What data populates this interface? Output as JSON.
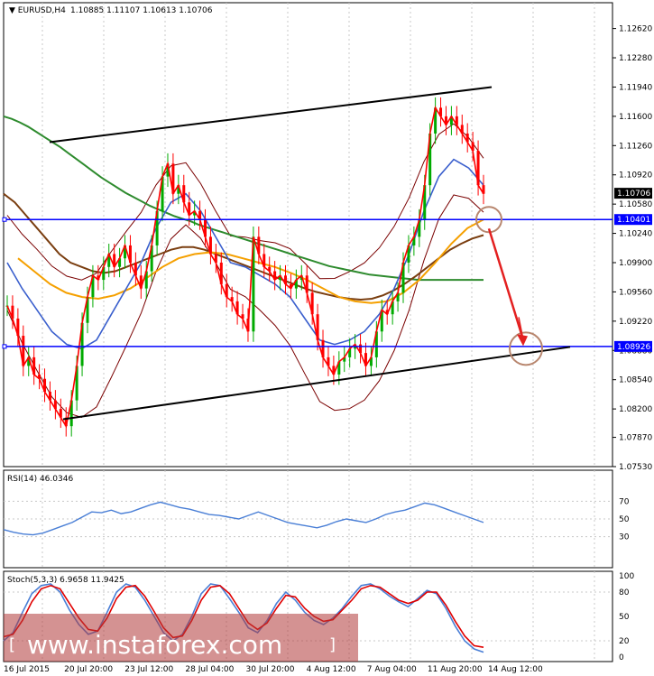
{
  "chart_data": [
    {
      "type": "line",
      "symbol": "EURUSD,H4",
      "ohlc": [
        "1.10885",
        "1.11107",
        "1.10613",
        "1.10706"
      ],
      "ylim": [
        1.0753,
        1.1292
      ],
      "y_ticks": [
        "1.12620",
        "1.12280",
        "1.11940",
        "1.11600",
        "1.11260",
        "1.10920",
        "1.10580",
        "1.10240",
        "1.09900",
        "1.09560",
        "1.09220",
        "1.08880",
        "1.08540",
        "1.08200",
        "1.07870",
        "1.07530"
      ],
      "price_levels": [
        {
          "label": "1.10706",
          "value": 1.10706,
          "color": "#000000"
        },
        {
          "label": "1.10401",
          "value": 1.10401,
          "color": "#0000ff"
        },
        {
          "label": "1.08926",
          "value": 1.08926,
          "color": "#0000ff"
        }
      ],
      "x_labels": [
        "16 Jul 2015",
        "20 Jul 20:00",
        "23 Jul 12:00",
        "28 Jul 04:00",
        "30 Jul 20:00",
        "4 Aug 12:00",
        "7 Aug 04:00",
        "11 Aug 20:00",
        "14 Aug 12:00"
      ],
      "close": [
        1.094,
        1.0925,
        1.0905,
        1.087,
        1.088,
        1.086,
        1.0855,
        1.084,
        1.083,
        1.082,
        1.081,
        1.08,
        1.083,
        1.087,
        1.092,
        1.095,
        1.0975,
        1.097,
        1.0985,
        1.1,
        1.0985,
        1.0995,
        1.101,
        1.099,
        1.0975,
        1.096,
        1.098,
        1.101,
        1.105,
        1.109,
        1.1105,
        1.107,
        1.108,
        1.106,
        1.1045,
        1.105,
        1.104,
        1.102,
        1.1,
        1.099,
        1.0965,
        1.095,
        1.0945,
        1.093,
        1.0925,
        1.091,
        1.102,
        1.1,
        1.0985,
        1.098,
        1.097,
        1.0975,
        1.0965,
        1.096,
        1.097,
        1.0975,
        1.0955,
        1.093,
        1.09,
        1.088,
        1.087,
        1.086,
        1.0875,
        1.088,
        1.089,
        1.0895,
        1.0885,
        1.087,
        1.088,
        1.091,
        1.0935,
        1.093,
        1.0945,
        1.0955,
        1.099,
        1.101,
        1.102,
        1.104,
        1.108,
        1.114,
        1.117,
        1.116,
        1.115,
        1.116,
        1.115,
        1.114,
        1.113,
        1.112,
        1.108,
        1.107
      ],
      "ma_green": [
        1.116,
        1.1157,
        1.1153,
        1.1148,
        1.1142,
        1.1136,
        1.113,
        1.1124,
        1.1117,
        1.111,
        1.1103,
        1.1096,
        1.1089,
        1.1083,
        1.1077,
        1.1071,
        1.1066,
        1.1061,
        1.1056,
        1.1052,
        1.1048,
        1.1044,
        1.1041,
        1.1038,
        1.1034,
        1.1031,
        1.1028,
        1.1025,
        1.1022,
        1.1019,
        1.1016,
        1.1013,
        1.101,
        1.1007,
        1.1004,
        1.1001,
        1.0998,
        1.0995,
        1.0992,
        1.0989,
        1.0986,
        1.0984,
        1.0982,
        1.098,
        1.0978,
        1.0976,
        1.0975,
        1.0974,
        1.0973,
        1.0972,
        1.0971,
        1.097,
        1.097,
        1.097,
        1.097,
        1.097,
        1.097,
        1.097,
        1.097,
        1.097
      ],
      "ma_brown": [
        1.107,
        1.106,
        1.1045,
        1.103,
        1.1015,
        1.1,
        1.099,
        1.0985,
        1.098,
        1.0978,
        1.098,
        1.0985,
        1.099,
        1.0995,
        1.1,
        1.1005,
        1.1008,
        1.1008,
        1.1005,
        1.1,
        1.0995,
        1.099,
        1.0985,
        1.098,
        1.0975,
        1.097,
        1.0965,
        1.096,
        1.0956,
        1.0953,
        1.095,
        1.0948,
        1.0947,
        1.0948,
        1.0952,
        1.0958,
        1.0966,
        1.0975,
        1.0985,
        1.0995,
        1.1005,
        1.1012,
        1.1018,
        1.1022
      ],
      "ma_orange": [
        1.0995,
        1.098,
        1.0965,
        1.0955,
        1.095,
        1.0948,
        1.0952,
        1.096,
        1.0972,
        1.0985,
        1.0995,
        1.1,
        1.1002,
        1.1,
        1.0995,
        1.099,
        1.0985,
        1.0978,
        1.097,
        1.096,
        1.095,
        1.0945,
        1.0943,
        1.0945,
        1.0955,
        1.097,
        1.099,
        1.1012,
        1.103,
        1.104
      ],
      "ma_blue": [
        1.099,
        1.096,
        1.0935,
        1.091,
        1.0895,
        1.089,
        1.09,
        1.093,
        1.096,
        1.099,
        1.103,
        1.106,
        1.107,
        1.105,
        1.102,
        1.099,
        1.0985,
        1.0975,
        1.0965,
        1.095,
        1.0925,
        1.09,
        1.0895,
        1.09,
        1.091,
        1.093,
        1.096,
        1.1,
        1.105,
        1.109,
        1.111,
        1.11,
        1.108
      ],
      "channel_upper": [
        [
          1.113,
          1.1194
        ]
      ],
      "channel_lower": [
        [
          1.0808,
          1.0892
        ]
      ]
    },
    {
      "type": "line",
      "label": "RSI(14) 46.0346",
      "ylim": [
        0,
        100
      ],
      "y_ticks": [
        "70",
        "50",
        "30"
      ],
      "values": [
        38,
        35,
        33,
        32,
        34,
        38,
        42,
        46,
        52,
        58,
        57,
        60,
        56,
        58,
        62,
        66,
        69,
        66,
        63,
        61,
        58,
        55,
        54,
        52,
        50,
        54,
        58,
        54,
        50,
        46,
        44,
        42,
        40,
        43,
        47,
        50,
        48,
        46,
        50,
        55,
        58,
        60,
        64,
        68,
        66,
        62,
        58,
        54,
        50,
        46
      ]
    },
    {
      "type": "line",
      "label": "Stoch(5,3,3) 6.9658 11.9425",
      "ylim": [
        0,
        100
      ],
      "y_ticks": [
        "100",
        "80",
        "50",
        "20",
        "0"
      ],
      "k": [
        20,
        30,
        55,
        78,
        88,
        90,
        80,
        58,
        40,
        28,
        32,
        55,
        80,
        90,
        86,
        70,
        50,
        30,
        20,
        28,
        50,
        78,
        90,
        88,
        72,
        55,
        36,
        30,
        45,
        66,
        80,
        70,
        55,
        45,
        40,
        48,
        60,
        75,
        88,
        90,
        84,
        75,
        68,
        62,
        72,
        82,
        78,
        60,
        38,
        20,
        10,
        6
      ],
      "d": [
        25,
        28,
        45,
        68,
        84,
        88,
        84,
        66,
        48,
        34,
        32,
        48,
        72,
        86,
        88,
        75,
        56,
        36,
        24,
        26,
        45,
        70,
        86,
        88,
        78,
        60,
        42,
        34,
        42,
        60,
        76,
        74,
        60,
        50,
        44,
        46,
        58,
        70,
        84,
        88,
        86,
        78,
        70,
        66,
        70,
        80,
        80,
        64,
        44,
        26,
        14,
        12
      ]
    }
  ],
  "watermark": "www.instaforex.com",
  "colors": {
    "price_up": "#00aa00",
    "price_down": "#ff0000",
    "ma_green": "#2e8b2e",
    "ma_brown": "#7a3e10",
    "ma_orange": "#f5a000",
    "ma_blue": "#3a5fcd",
    "bands": "#7a0000",
    "level": "#0000ff",
    "indicator": "#4a7fd6",
    "stoch_signal": "#e00000",
    "arrow": "#e32020",
    "circle": "#b8866e"
  }
}
